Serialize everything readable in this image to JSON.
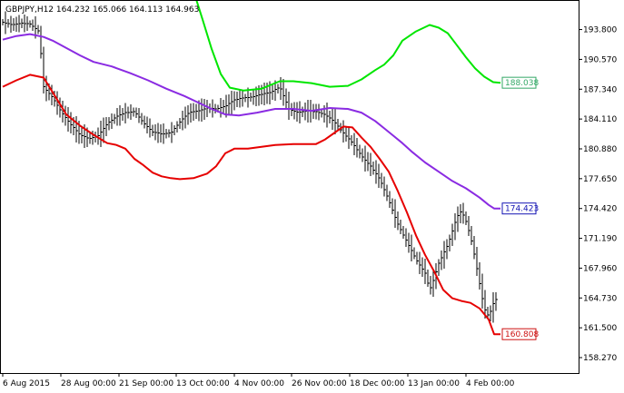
{
  "chart_data": {
    "type": "line",
    "title": "GBPJPY,H12  164.232 165.066 164.113 164.963",
    "xlabel": "",
    "ylabel": "",
    "ylim": [
      156.6,
      197.0
    ],
    "xlim": [
      0,
      580
    ],
    "grid": false,
    "y_ticks": [
      "193.800",
      "190.570",
      "187.340",
      "184.110",
      "180.880",
      "177.650",
      "174.420",
      "171.190",
      "167.960",
      "164.730",
      "161.500",
      "158.270"
    ],
    "x_ticks": [
      {
        "x": 0,
        "label": "6 Aug 2015"
      },
      {
        "x": 64,
        "label": "28 Aug 00:00"
      },
      {
        "x": 128,
        "label": "21 Sep 00:00"
      },
      {
        "x": 191,
        "label": "13 Oct 00:00"
      },
      {
        "x": 255,
        "label": "4 Nov 00:00"
      },
      {
        "x": 318,
        "label": "26 Nov 00:00"
      },
      {
        "x": 382,
        "label": "18 Dec 00:00"
      },
      {
        "x": 446,
        "label": "13 Jan 00:00"
      },
      {
        "x": 510,
        "label": "4 Feb 00:00"
      }
    ],
    "colors": {
      "price": "#000000",
      "upper": "#00e600",
      "middle": "#8a2be2",
      "lower": "#e60000",
      "axis": "#000000",
      "upper_tag_border": "#33a866",
      "upper_tag_text": "#33a866",
      "middle_tag_border": "#1515b4",
      "middle_tag_text": "#1515b4",
      "lower_tag_border": "#cc1111",
      "lower_tag_text": "#cc1111"
    },
    "series": [
      {
        "values": [
          [
            0,
            194.6
          ],
          [
            10,
            194.3
          ],
          [
            20,
            194.5
          ],
          [
            30,
            194.4
          ],
          [
            40,
            193.6
          ],
          [
            45,
            187.6
          ],
          [
            55,
            186.4
          ],
          [
            65,
            184.8
          ],
          [
            75,
            183.5
          ],
          [
            85,
            182.4
          ],
          [
            95,
            182.0
          ],
          [
            105,
            182.3
          ],
          [
            115,
            183.6
          ],
          [
            125,
            184.4
          ],
          [
            135,
            184.8
          ],
          [
            145,
            184.9
          ],
          [
            155,
            183.7
          ],
          [
            165,
            182.7
          ],
          [
            175,
            182.5
          ],
          [
            185,
            182.6
          ],
          [
            195,
            183.8
          ],
          [
            205,
            184.8
          ],
          [
            215,
            185.0
          ],
          [
            225,
            185.3
          ],
          [
            235,
            185.2
          ],
          [
            245,
            185.5
          ],
          [
            255,
            186.2
          ],
          [
            265,
            186.4
          ],
          [
            275,
            186.5
          ],
          [
            285,
            186.8
          ],
          [
            295,
            187.0
          ],
          [
            305,
            187.6
          ],
          [
            315,
            185.2
          ],
          [
            325,
            184.8
          ],
          [
            335,
            185.0
          ],
          [
            345,
            184.9
          ],
          [
            355,
            184.6
          ],
          [
            365,
            183.8
          ],
          [
            375,
            182.6
          ],
          [
            385,
            181.5
          ],
          [
            395,
            180.1
          ],
          [
            405,
            179.0
          ],
          [
            415,
            177.6
          ],
          [
            425,
            175.3
          ],
          [
            435,
            172.7
          ],
          [
            445,
            170.8
          ],
          [
            455,
            168.9
          ],
          [
            465,
            167.4
          ],
          [
            470,
            165.6
          ],
          [
            475,
            166.9
          ],
          [
            480,
            168.5
          ],
          [
            485,
            169.5
          ],
          [
            490,
            170.5
          ],
          [
            495,
            172.0
          ],
          [
            500,
            173.5
          ],
          [
            505,
            174.2
          ],
          [
            510,
            173.0
          ],
          [
            515,
            171.4
          ],
          [
            520,
            169.0
          ],
          [
            525,
            166.3
          ],
          [
            530,
            163.6
          ],
          [
            535,
            162.7
          ],
          [
            540,
            164.1
          ],
          [
            545,
            164.9
          ]
        ]
      },
      {
        "values": [
          [
            200,
            200.5
          ],
          [
            210,
            198.0
          ],
          [
            220,
            194.9
          ],
          [
            230,
            191.7
          ],
          [
            240,
            189.0
          ],
          [
            250,
            187.5
          ],
          [
            265,
            187.2
          ],
          [
            285,
            187.4
          ],
          [
            305,
            188.2
          ],
          [
            320,
            188.2
          ],
          [
            340,
            188.0
          ],
          [
            360,
            187.6
          ],
          [
            380,
            187.7
          ],
          [
            395,
            188.4
          ],
          [
            410,
            189.4
          ],
          [
            420,
            190.0
          ],
          [
            430,
            191.0
          ],
          [
            440,
            192.6
          ],
          [
            455,
            193.6
          ],
          [
            470,
            194.3
          ],
          [
            480,
            194.0
          ],
          [
            490,
            193.4
          ],
          [
            500,
            192.1
          ],
          [
            510,
            190.8
          ],
          [
            520,
            189.6
          ],
          [
            530,
            188.7
          ],
          [
            540,
            188.1
          ],
          [
            548,
            188.04
          ]
        ]
      },
      {
        "values": [
          [
            0,
            192.7
          ],
          [
            15,
            193.1
          ],
          [
            30,
            193.3
          ],
          [
            45,
            193.0
          ],
          [
            55,
            192.6
          ],
          [
            70,
            191.8
          ],
          [
            85,
            191.0
          ],
          [
            100,
            190.3
          ],
          [
            120,
            189.8
          ],
          [
            140,
            189.1
          ],
          [
            160,
            188.3
          ],
          [
            180,
            187.4
          ],
          [
            200,
            186.6
          ],
          [
            215,
            185.9
          ],
          [
            230,
            185.2
          ],
          [
            245,
            184.6
          ],
          [
            260,
            184.5
          ],
          [
            280,
            184.8
          ],
          [
            300,
            185.2
          ],
          [
            320,
            185.2
          ],
          [
            340,
            185.0
          ],
          [
            360,
            185.3
          ],
          [
            380,
            185.2
          ],
          [
            395,
            184.8
          ],
          [
            410,
            183.9
          ],
          [
            420,
            183.1
          ],
          [
            430,
            182.3
          ],
          [
            440,
            181.5
          ],
          [
            450,
            180.6
          ],
          [
            465,
            179.4
          ],
          [
            480,
            178.4
          ],
          [
            495,
            177.4
          ],
          [
            510,
            176.6
          ],
          [
            525,
            175.6
          ],
          [
            535,
            174.8
          ],
          [
            541,
            174.42
          ],
          [
            548,
            174.42
          ]
        ]
      },
      {
        "values": [
          [
            0,
            187.6
          ],
          [
            15,
            188.3
          ],
          [
            30,
            188.9
          ],
          [
            45,
            188.6
          ],
          [
            55,
            187.0
          ],
          [
            70,
            184.6
          ],
          [
            85,
            183.4
          ],
          [
            100,
            182.4
          ],
          [
            115,
            181.5
          ],
          [
            125,
            181.3
          ],
          [
            135,
            180.9
          ],
          [
            145,
            179.8
          ],
          [
            155,
            179.1
          ],
          [
            165,
            178.3
          ],
          [
            175,
            177.9
          ],
          [
            185,
            177.7
          ],
          [
            195,
            177.6
          ],
          [
            210,
            177.7
          ],
          [
            225,
            178.2
          ],
          [
            235,
            179.0
          ],
          [
            245,
            180.4
          ],
          [
            255,
            180.9
          ],
          [
            270,
            180.9
          ],
          [
            285,
            181.1
          ],
          [
            300,
            181.3
          ],
          [
            320,
            181.4
          ],
          [
            345,
            181.4
          ],
          [
            355,
            181.9
          ],
          [
            365,
            182.6
          ],
          [
            375,
            183.3
          ],
          [
            385,
            183.2
          ],
          [
            395,
            182.1
          ],
          [
            405,
            181.1
          ],
          [
            415,
            179.8
          ],
          [
            425,
            178.4
          ],
          [
            435,
            176.3
          ],
          [
            445,
            174.0
          ],
          [
            455,
            171.5
          ],
          [
            465,
            169.4
          ],
          [
            475,
            167.6
          ],
          [
            485,
            165.6
          ],
          [
            495,
            164.7
          ],
          [
            505,
            164.4
          ],
          [
            515,
            164.2
          ],
          [
            525,
            163.6
          ],
          [
            535,
            162.4
          ],
          [
            541,
            160.808
          ],
          [
            548,
            160.808
          ]
        ]
      }
    ],
    "series_labels": [
      {
        "series": 1,
        "value": "188.038"
      },
      {
        "series": 2,
        "value": "174.423"
      },
      {
        "series": 3,
        "value": "160.808"
      }
    ]
  }
}
